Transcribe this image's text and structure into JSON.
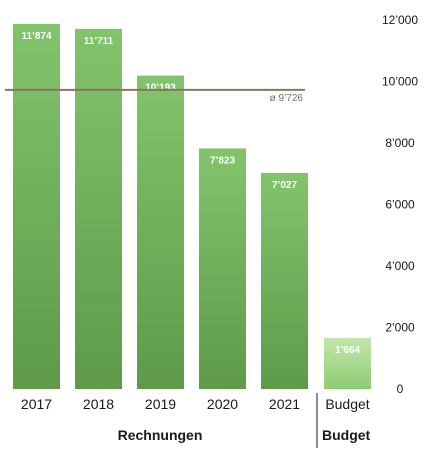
{
  "chart_data": {
    "type": "bar",
    "categories": [
      "2017",
      "2018",
      "2019",
      "2020",
      "2021",
      "Budget"
    ],
    "values": [
      11874,
      11711,
      10193,
      7823,
      7027,
      1664
    ],
    "value_labels": [
      "11’874",
      "11’711",
      "10’193",
      "7’823",
      "7’027",
      "1’664"
    ],
    "groups": [
      {
        "label": "Rechnungen",
        "categories": [
          "2017",
          "2018",
          "2019",
          "2020",
          "2021"
        ]
      },
      {
        "label": "Budget",
        "categories": [
          "Budget"
        ]
      }
    ],
    "average": {
      "value": 9726,
      "label": "ø 9’726"
    },
    "ylim": [
      0,
      12000
    ],
    "yticks": [
      0,
      2000,
      4000,
      6000,
      8000,
      10000,
      12000
    ],
    "ytick_labels": [
      "0",
      "2’000",
      "4’000",
      "6’000",
      "8’000",
      "10’000",
      "12’000"
    ],
    "y_axis_position": "right",
    "grid": false,
    "colors": {
      "bar_top": "#82c46c",
      "bar_bottom": "#5e9a49",
      "budget_top": "#c3e6ad",
      "budget_bottom": "#8ecc72",
      "average_line": "#8a7562",
      "separator": "#1a1a1a"
    }
  }
}
